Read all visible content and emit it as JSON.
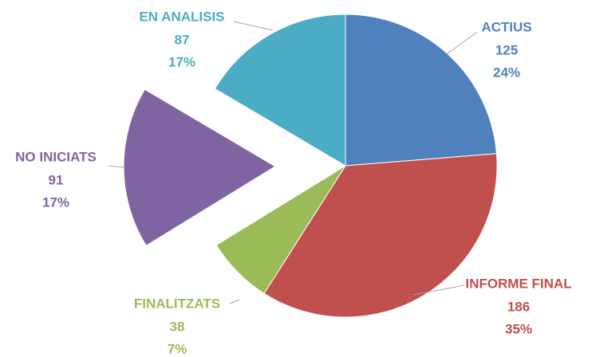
{
  "chart_data": {
    "type": "pie",
    "categories": [
      "ACTIUS",
      "INFORME FINAL",
      "FINALITZATS",
      "NO INICIATS",
      "EN ANALISIS"
    ],
    "values": [
      125,
      186,
      38,
      91,
      87
    ],
    "percent_labels": [
      "24%",
      "35%",
      "7%",
      "17%",
      "17%"
    ],
    "colors": [
      "#4f81bd",
      "#c0504d",
      "#9bbb59",
      "#8064a2",
      "#4bacc6"
    ],
    "exploded": [
      false,
      false,
      false,
      true,
      false
    ]
  }
}
